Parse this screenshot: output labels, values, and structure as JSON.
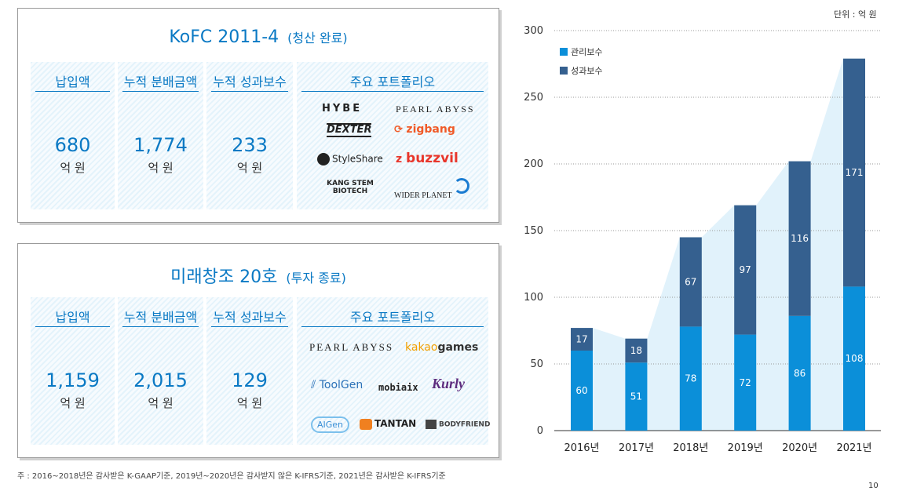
{
  "funds": [
    {
      "title": "KoFC 2011-4",
      "subtitle": "(청산 완료)",
      "columns": [
        {
          "header": "납입액",
          "value": "680",
          "unit": "억 원"
        },
        {
          "header": "누적 분배금액",
          "value": "1,774",
          "unit": "억 원"
        },
        {
          "header": "누적 성과보수",
          "value": "233",
          "unit": "억 원"
        }
      ],
      "portfolio_header": "주요 포트폴리오",
      "logos": [
        "HYBE",
        "PEARL ABYSS",
        "DEXTER",
        "zigbang",
        "StyleShare",
        "buzzvil",
        "KANG STEM BIOTECH",
        "WIDER PLANET"
      ]
    },
    {
      "title": "미래창조 20호",
      "subtitle": "(투자 종료)",
      "columns": [
        {
          "header": "납입액",
          "value": "1,159",
          "unit": "억 원"
        },
        {
          "header": "누적 분배금액",
          "value": "2,015",
          "unit": "억 원"
        },
        {
          "header": "누적 성과보수",
          "value": "129",
          "unit": "억 원"
        }
      ],
      "portfolio_header": "주요 포트폴리오",
      "logos": [
        "PEARL ABYSS",
        "kakao",
        "games",
        "ToolGen",
        "mobiaix",
        "Kurly",
        "AIGen",
        "TANTAN",
        "BODYFRIEND"
      ]
    }
  ],
  "footnote": "주 : 2016~2018년은 감사받은 K-GAAP기준, 2019년~2020년은 감사받지 않은 K-IFRS기준, 2021년은 감사받은 K-IFRS기준",
  "unit_label": "단위 : 억 원",
  "page_number": "10",
  "colors": {
    "accent": "#0a79c4",
    "management": "#0b8fd9",
    "performance": "#35608f",
    "band": "#dcf0fa"
  },
  "chart_data": {
    "type": "bar",
    "stacked": true,
    "categories": [
      "2016년",
      "2017년",
      "2018년",
      "2019년",
      "2020년",
      "2021년"
    ],
    "series": [
      {
        "name": "관리보수",
        "values": [
          60,
          51,
          78,
          72,
          86,
          108
        ]
      },
      {
        "name": "성과보수",
        "values": [
          17,
          18,
          67,
          97,
          116,
          171
        ]
      }
    ],
    "ylim": [
      0,
      300
    ],
    "yticks": [
      "0",
      "50",
      "100",
      "150",
      "200",
      "250",
      "300"
    ],
    "legend_position": "top-left"
  }
}
